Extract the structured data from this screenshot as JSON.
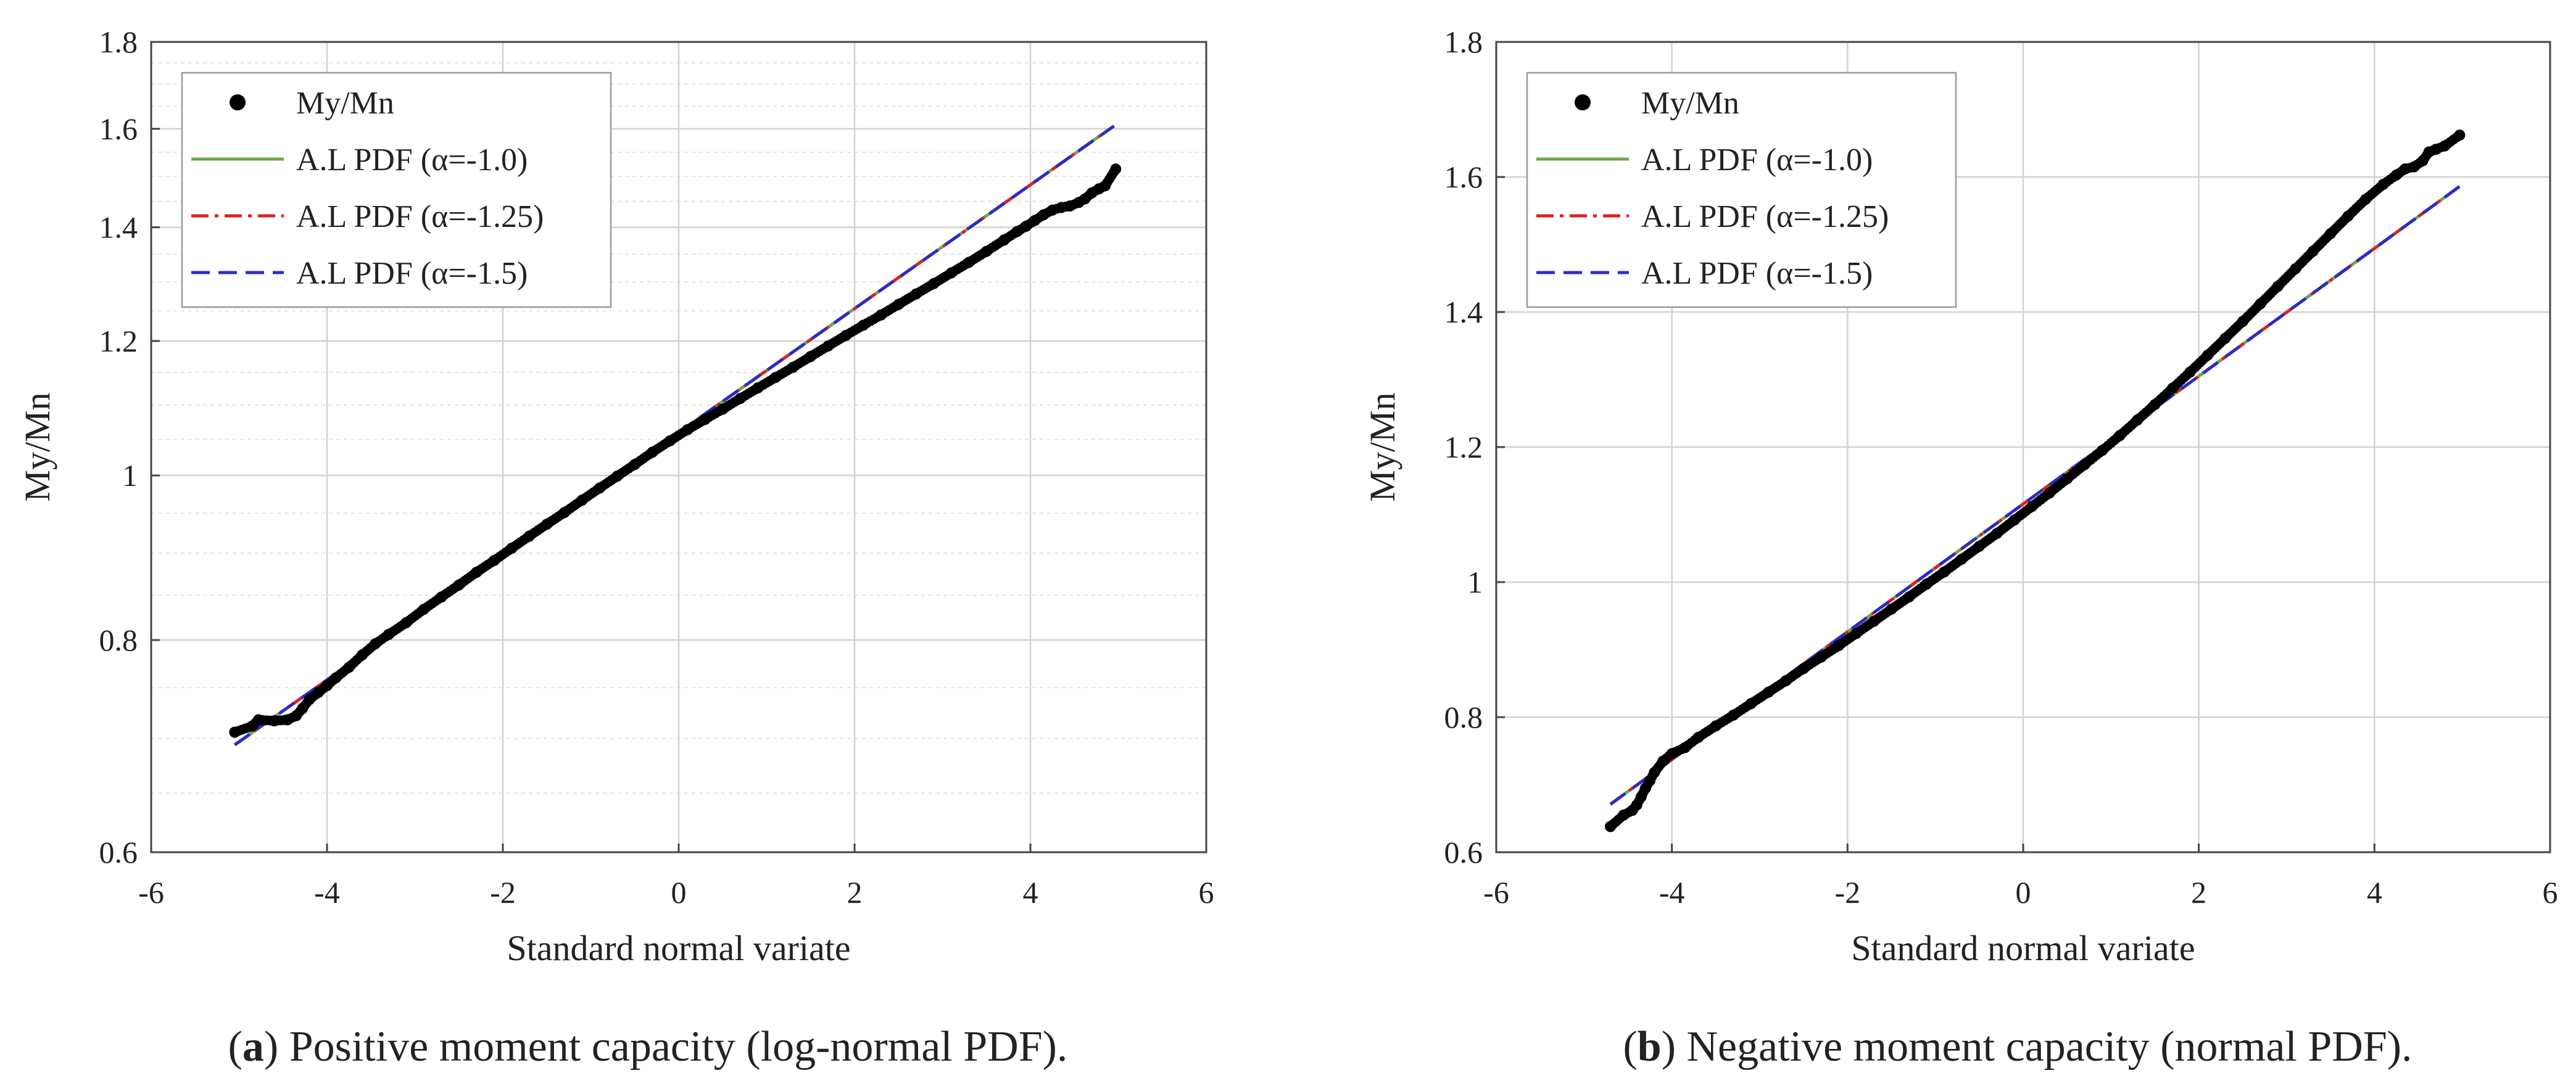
{
  "chart_data": [
    {
      "id": "a",
      "type": "scatter",
      "title": "",
      "xlabel": "Standard normal variate",
      "ylabel": "My/Mn",
      "y_scale": "log",
      "xlim": [
        -6,
        6
      ],
      "ylim": [
        0.6,
        1.8
      ],
      "x_ticks": [
        -6,
        -4,
        -2,
        0,
        2,
        4,
        6
      ],
      "x_tick_labels": [
        "-6",
        "-4",
        "-2",
        "0",
        "2",
        "4",
        "6"
      ],
      "y_ticks": [
        0.6,
        0.8,
        1,
        1.2,
        1.4,
        1.6,
        1.8
      ],
      "y_tick_labels": [
        "0.6",
        "0.8",
        "1",
        "1.2",
        "1.4",
        "1.6",
        "1.8"
      ],
      "grid": true,
      "minor_grid": true,
      "legend_position": "top-left",
      "caption_prefix": "a",
      "caption": "Positive moment capacity (log-normal PDF).",
      "series": [
        {
          "name": "My/Mn",
          "kind": "points",
          "color": "#000000",
          "points": [
            [
              -5.05,
              0.706
            ],
            [
              -4.85,
              0.712
            ],
            [
              -4.78,
              0.718
            ],
            [
              -4.6,
              0.717
            ],
            [
              -4.45,
              0.718
            ],
            [
              -4.35,
              0.722
            ],
            [
              -4.28,
              0.729
            ],
            [
              -4.2,
              0.738
            ],
            [
              -4.1,
              0.745
            ],
            [
              -4.0,
              0.752
            ],
            [
              -3.9,
              0.76
            ],
            [
              -3.75,
              0.771
            ],
            [
              -3.6,
              0.784
            ],
            [
              -3.45,
              0.796
            ],
            [
              -3.3,
              0.806
            ],
            [
              -3.1,
              0.819
            ],
            [
              -2.9,
              0.834
            ],
            [
              -2.7,
              0.848
            ],
            [
              -2.5,
              0.862
            ],
            [
              -2.3,
              0.877
            ],
            [
              -2.1,
              0.891
            ],
            [
              -1.9,
              0.906
            ],
            [
              -1.7,
              0.921
            ],
            [
              -1.5,
              0.936
            ],
            [
              -1.3,
              0.951
            ],
            [
              -1.1,
              0.967
            ],
            [
              -0.9,
              0.983
            ],
            [
              -0.7,
              0.999
            ],
            [
              -0.5,
              1.015
            ],
            [
              -0.3,
              1.032
            ],
            [
              -0.1,
              1.048
            ],
            [
              0.1,
              1.064
            ],
            [
              0.3,
              1.079
            ],
            [
              0.5,
              1.094
            ],
            [
              0.7,
              1.11
            ],
            [
              0.9,
              1.126
            ],
            [
              1.1,
              1.142
            ],
            [
              1.3,
              1.158
            ],
            [
              1.5,
              1.175
            ],
            [
              1.7,
              1.192
            ],
            [
              1.9,
              1.209
            ],
            [
              2.1,
              1.226
            ],
            [
              2.3,
              1.243
            ],
            [
              2.5,
              1.261
            ],
            [
              2.7,
              1.279
            ],
            [
              2.9,
              1.297
            ],
            [
              3.1,
              1.316
            ],
            [
              3.3,
              1.335
            ],
            [
              3.5,
              1.355
            ],
            [
              3.7,
              1.376
            ],
            [
              3.85,
              1.392
            ],
            [
              3.95,
              1.402
            ],
            [
              4.05,
              1.413
            ],
            [
              4.15,
              1.424
            ],
            [
              4.25,
              1.433
            ],
            [
              4.35,
              1.438
            ],
            [
              4.45,
              1.441
            ],
            [
              4.55,
              1.448
            ],
            [
              4.62,
              1.455
            ],
            [
              4.7,
              1.467
            ],
            [
              4.78,
              1.475
            ],
            [
              4.85,
              1.481
            ],
            [
              4.97,
              1.515
            ]
          ]
        },
        {
          "name": "A.L PDF (α=-1.0)",
          "kind": "line",
          "color": "#6aa84f",
          "dash": "solid",
          "x": [
            -5.05,
            4.95
          ],
          "y": [
            0.694,
            1.606
          ]
        },
        {
          "name": "A.L PDF (α=-1.25)",
          "kind": "line",
          "color": "#e02020",
          "dash": "dashdot",
          "x": [
            -5.05,
            4.95
          ],
          "y": [
            0.694,
            1.606
          ]
        },
        {
          "name": "A.L PDF (α=-1.5)",
          "kind": "line",
          "color": "#2b2bc8",
          "dash": "dash",
          "x": [
            -5.05,
            4.95
          ],
          "y": [
            0.694,
            1.606
          ]
        }
      ]
    },
    {
      "id": "b",
      "type": "scatter",
      "title": "",
      "xlabel": "Standard normal variate",
      "ylabel": "My/Mn",
      "y_scale": "linear",
      "xlim": [
        -6,
        6
      ],
      "ylim": [
        0.6,
        1.8
      ],
      "x_ticks": [
        -6,
        -4,
        -2,
        0,
        2,
        4,
        6
      ],
      "x_tick_labels": [
        "-6",
        "-4",
        "-2",
        "0",
        "2",
        "4",
        "6"
      ],
      "y_ticks": [
        0.6,
        0.8,
        1,
        1.2,
        1.4,
        1.6,
        1.8
      ],
      "y_tick_labels": [
        "0.6",
        "0.8",
        "1",
        "1.2",
        "1.4",
        "1.6",
        "1.8"
      ],
      "grid": true,
      "minor_grid": false,
      "legend_position": "top-left",
      "caption_prefix": "b",
      "caption": "Negative moment capacity (normal PDF).",
      "series": [
        {
          "name": "My/Mn",
          "kind": "points",
          "color": "#000000",
          "points": [
            [
              -4.7,
              0.638
            ],
            [
              -4.55,
              0.655
            ],
            [
              -4.45,
              0.662
            ],
            [
              -4.4,
              0.67
            ],
            [
              -4.35,
              0.682
            ],
            [
              -4.3,
              0.695
            ],
            [
              -4.25,
              0.706
            ],
            [
              -4.2,
              0.718
            ],
            [
              -4.1,
              0.735
            ],
            [
              -4.0,
              0.746
            ],
            [
              -3.85,
              0.755
            ],
            [
              -3.7,
              0.77
            ],
            [
              -3.5,
              0.787
            ],
            [
              -3.3,
              0.803
            ],
            [
              -3.1,
              0.82
            ],
            [
              -2.9,
              0.837
            ],
            [
              -2.7,
              0.854
            ],
            [
              -2.5,
              0.872
            ],
            [
              -2.3,
              0.889
            ],
            [
              -2.1,
              0.906
            ],
            [
              -1.9,
              0.924
            ],
            [
              -1.7,
              0.942
            ],
            [
              -1.5,
              0.96
            ],
            [
              -1.3,
              0.978
            ],
            [
              -1.1,
              0.997
            ],
            [
              -0.9,
              1.015
            ],
            [
              -0.7,
              1.034
            ],
            [
              -0.5,
              1.053
            ],
            [
              -0.3,
              1.072
            ],
            [
              -0.1,
              1.092
            ],
            [
              0.1,
              1.112
            ],
            [
              0.3,
              1.132
            ],
            [
              0.5,
              1.153
            ],
            [
              0.7,
              1.174
            ],
            [
              0.9,
              1.195
            ],
            [
              1.1,
              1.217
            ],
            [
              1.3,
              1.24
            ],
            [
              1.5,
              1.263
            ],
            [
              1.7,
              1.287
            ],
            [
              1.9,
              1.311
            ],
            [
              2.1,
              1.336
            ],
            [
              2.3,
              1.361
            ],
            [
              2.5,
              1.386
            ],
            [
              2.7,
              1.412
            ],
            [
              2.9,
              1.438
            ],
            [
              3.1,
              1.464
            ],
            [
              3.3,
              1.49
            ],
            [
              3.5,
              1.516
            ],
            [
              3.7,
              1.542
            ],
            [
              3.9,
              1.567
            ],
            [
              4.1,
              1.589
            ],
            [
              4.25,
              1.603
            ],
            [
              4.35,
              1.612
            ],
            [
              4.45,
              1.615
            ],
            [
              4.55,
              1.624
            ],
            [
              4.62,
              1.637
            ],
            [
              4.7,
              1.641
            ],
            [
              4.8,
              1.646
            ],
            [
              4.97,
              1.662
            ]
          ]
        },
        {
          "name": "A.L PDF (α=-1.0)",
          "kind": "line",
          "color": "#6aa84f",
          "dash": "solid",
          "x": [
            -4.7,
            4.97
          ],
          "y": [
            0.671,
            1.586
          ]
        },
        {
          "name": "A.L PDF (α=-1.25)",
          "kind": "line",
          "color": "#e02020",
          "dash": "dashdot",
          "x": [
            -4.7,
            4.97
          ],
          "y": [
            0.671,
            1.586
          ]
        },
        {
          "name": "A.L PDF (α=-1.5)",
          "kind": "line",
          "color": "#2b2bc8",
          "dash": "dash",
          "x": [
            -4.7,
            4.97
          ],
          "y": [
            0.671,
            1.586
          ]
        }
      ]
    }
  ]
}
